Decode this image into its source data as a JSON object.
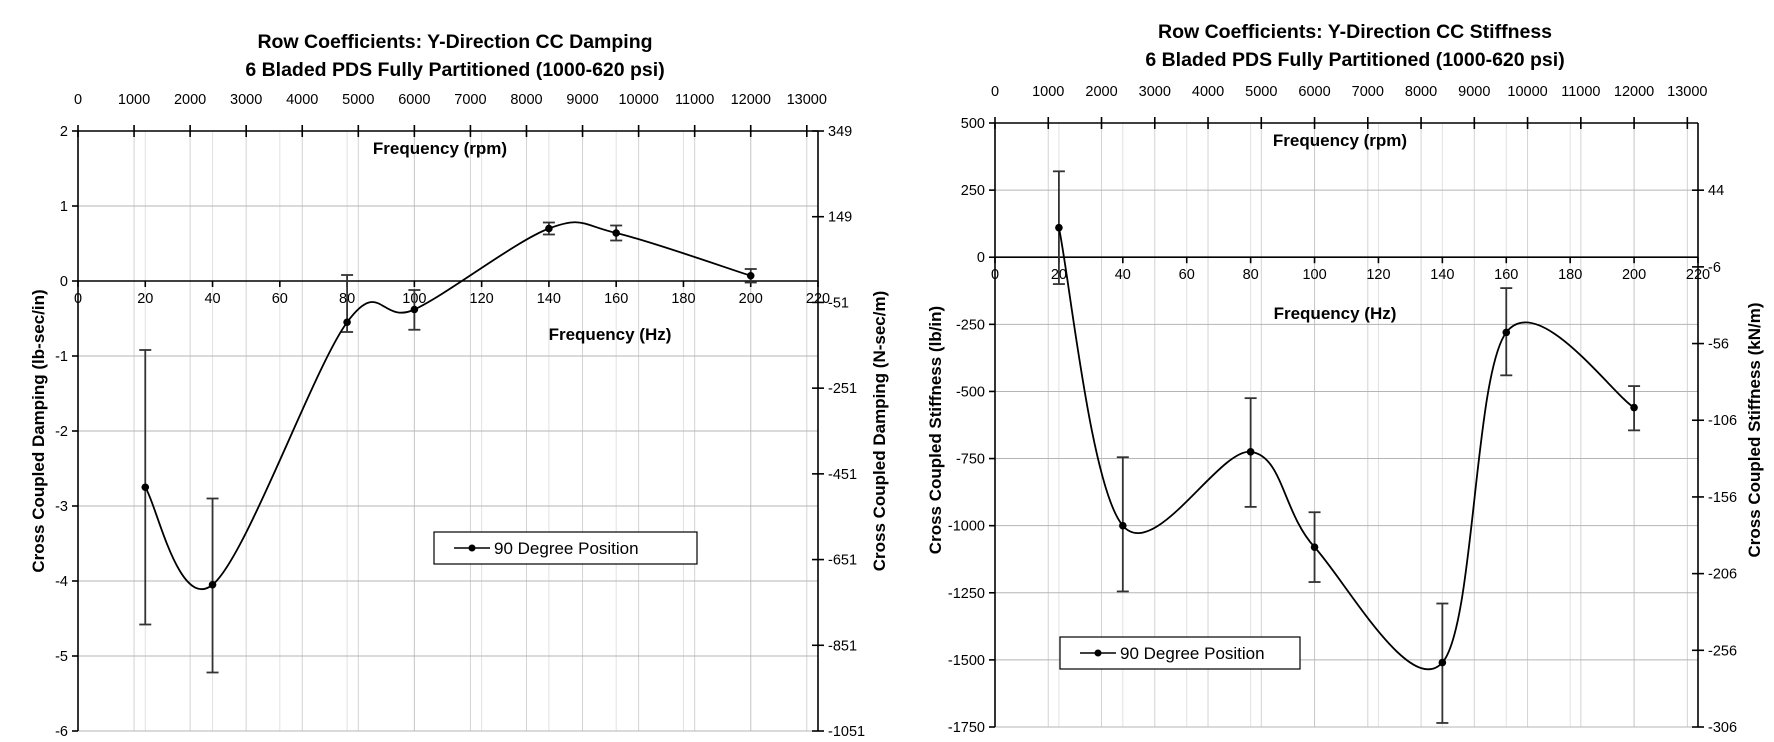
{
  "chart_data": [
    {
      "type": "line",
      "title": "Row Coefficients: Y-Direction CC Damping",
      "subtitle": "6 Bladed PDS Fully Partitioned (1000-620 psi)",
      "xlabel": "Frequency (Hz)",
      "x2label": "Frequency (rpm)",
      "ylabel": "Cross Coupled Damping (lb-sec/in)",
      "y2label": "Cross Coupled  Damping (N-sec/m)",
      "xlim": [
        0,
        220
      ],
      "ylim": [
        -6,
        2
      ],
      "x_ticks": [
        "0",
        "20",
        "40",
        "60",
        "80",
        "100",
        "120",
        "140",
        "160",
        "180",
        "200",
        "220"
      ],
      "x_tick_values": [
        0,
        20,
        40,
        60,
        80,
        100,
        120,
        140,
        160,
        180,
        200,
        220
      ],
      "x2_ticks": [
        "0",
        "1000",
        "2000",
        "3000",
        "4000",
        "5000",
        "6000",
        "7000",
        "8000",
        "9000",
        "10000",
        "11000",
        "12000",
        "13000"
      ],
      "x2_tick_values": [
        0,
        1000,
        2000,
        3000,
        4000,
        5000,
        6000,
        7000,
        8000,
        9000,
        10000,
        11000,
        12000,
        13000
      ],
      "x2_lim": [
        0,
        13200
      ],
      "y_ticks": [
        "2",
        "1",
        "0",
        "-1",
        "-2",
        "-3",
        "-4",
        "-5",
        "-6"
      ],
      "y_tick_values": [
        2,
        1,
        0,
        -1,
        -2,
        -3,
        -4,
        -5,
        -6
      ],
      "y2_ticks": [
        "349",
        "149",
        "-51",
        "-251",
        "-451",
        "-651",
        "-851",
        "-1051"
      ],
      "y2_tick_values": [
        349,
        149,
        -51,
        -251,
        -451,
        -651,
        -851,
        -1051
      ],
      "y2_lim": [
        -1051,
        349
      ],
      "grid": true,
      "legend": {
        "label": "90 Degree Position",
        "placement": "lower-center"
      },
      "series": [
        {
          "name": "90 Degree Position",
          "x": [
            20,
            40,
            80,
            100,
            140,
            160,
            200
          ],
          "values": [
            -2.75,
            -4.05,
            -0.55,
            -0.38,
            0.7,
            0.64,
            0.07
          ],
          "err_high": [
            -0.92,
            -2.9,
            0.08,
            -0.12,
            0.78,
            0.74,
            0.16
          ],
          "err_low": [
            -4.58,
            -5.22,
            -0.68,
            -0.65,
            0.62,
            0.54,
            -0.02
          ]
        }
      ]
    },
    {
      "type": "line",
      "title": "Row Coefficients: Y-Direction CC Stiffness",
      "subtitle": "6 Bladed PDS Fully Partitioned (1000-620 psi)",
      "xlabel": "Frequency (Hz)",
      "x2label": "Frequency (rpm)",
      "ylabel": "Cross Coupled Stiffness  (lb/in)",
      "y2label": "Cross Coupled Stiffness (kN/m)",
      "xlim": [
        0,
        220
      ],
      "ylim": [
        -1750,
        500
      ],
      "x_ticks": [
        "0",
        "20",
        "40",
        "60",
        "80",
        "100",
        "120",
        "140",
        "160",
        "180",
        "200",
        "220"
      ],
      "x_tick_values": [
        0,
        20,
        40,
        60,
        80,
        100,
        120,
        140,
        160,
        180,
        200,
        220
      ],
      "x2_ticks": [
        "0",
        "1000",
        "2000",
        "3000",
        "4000",
        "5000",
        "6000",
        "7000",
        "8000",
        "9000",
        "10000",
        "11000",
        "12000",
        "13000"
      ],
      "x2_tick_values": [
        0,
        1000,
        2000,
        3000,
        4000,
        5000,
        6000,
        7000,
        8000,
        9000,
        10000,
        11000,
        12000,
        13000
      ],
      "x2_lim": [
        0,
        13200
      ],
      "y_ticks": [
        "500",
        "250",
        "0",
        "-250",
        "-500",
        "-750",
        "-1000",
        "-1250",
        "-1500",
        "-1750"
      ],
      "y_tick_values": [
        500,
        250,
        0,
        -250,
        -500,
        -750,
        -1000,
        -1250,
        -1500,
        -1750
      ],
      "y2_ticks": [
        "44",
        "-6",
        "-56",
        "-106",
        "-156",
        "-206",
        "-256",
        "-306"
      ],
      "y2_tick_values": [
        44,
        -6,
        -56,
        -106,
        -156,
        -206,
        -256,
        -306
      ],
      "y2_lim": [
        -306,
        87.8
      ],
      "grid": true,
      "legend": {
        "label": "90 Degree Position",
        "placement": "lower-left"
      },
      "series": [
        {
          "name": "90 Degree Position",
          "x": [
            20,
            40,
            80,
            100,
            140,
            160,
            200
          ],
          "values": [
            110,
            -1000,
            -725,
            -1080,
            -1510,
            -280,
            -560
          ],
          "err_high": [
            320,
            -745,
            -525,
            -950,
            -1290,
            -115,
            -480
          ],
          "err_low": [
            -100,
            -1245,
            -930,
            -1210,
            -1735,
            -440,
            -645
          ]
        }
      ]
    }
  ]
}
